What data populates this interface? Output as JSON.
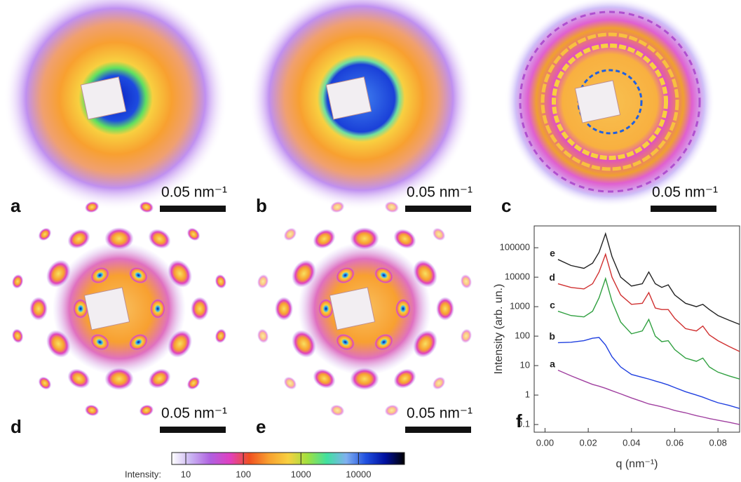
{
  "panels": [
    {
      "label": "a",
      "scale_bar": "0.05 nm⁻¹"
    },
    {
      "label": "b",
      "scale_bar": "0.05 nm⁻¹"
    },
    {
      "label": "c",
      "scale_bar": "0.05 nm⁻¹"
    },
    {
      "label": "d",
      "scale_bar": "0.05 nm⁻¹"
    },
    {
      "label": "e",
      "scale_bar": "0.05 nm⁻¹"
    }
  ],
  "colorbar": {
    "label": "Intensity:",
    "scale": "log",
    "lim": [
      5.7,
      63000
    ],
    "ticks": [
      10,
      100,
      1000,
      10000
    ],
    "colors": [
      "#ffffff",
      "#c9b3f2",
      "#b060e0",
      "#e040c0",
      "#f05020",
      "#f8a030",
      "#f8d040",
      "#a0e040",
      "#40e0a0",
      "#80b0f0",
      "#2050e0",
      "#0010a0",
      "#000000"
    ]
  },
  "chart_data": {
    "type": "line",
    "panel_label": "f",
    "xlabel": "q (nm⁻¹)",
    "ylabel": "Intensity (arb. un.)",
    "log_y": true,
    "xlim": [
      -0.005,
      0.09
    ],
    "ylim": [
      0.055,
      550000
    ],
    "xticks": [
      {
        "value": 0,
        "label": "0.00"
      },
      {
        "value": 0.02,
        "label": "0.02"
      },
      {
        "value": 0.04,
        "label": "0.04"
      },
      {
        "value": 0.06,
        "label": "0.06"
      },
      {
        "value": 0.08,
        "label": "0.08"
      }
    ],
    "yticks": [
      0.1,
      1,
      10,
      100,
      1000,
      10000,
      100000
    ],
    "x": [
      0.006,
      0.012,
      0.018,
      0.022,
      0.025,
      0.028,
      0.031,
      0.035,
      0.04,
      0.045,
      0.048,
      0.051,
      0.054,
      0.057,
      0.06,
      0.065,
      0.07,
      0.073,
      0.076,
      0.08,
      0.085,
      0.09
    ],
    "series": [
      {
        "name": "a",
        "color": "#a040a0",
        "values": [
          7,
          4.5,
          3,
          2.3,
          2,
          1.7,
          1.4,
          1.1,
          0.8,
          0.6,
          0.5,
          0.45,
          0.4,
          0.35,
          0.3,
          0.25,
          0.2,
          0.18,
          0.16,
          0.14,
          0.12,
          0.1
        ]
      },
      {
        "name": "b",
        "color": "#2040e0",
        "values": [
          60,
          62,
          70,
          85,
          90,
          50,
          20,
          9,
          5,
          4,
          3.5,
          3,
          2.6,
          2.2,
          1.8,
          1.3,
          1,
          0.85,
          0.7,
          0.55,
          0.45,
          0.35
        ]
      },
      {
        "name": "c",
        "color": "#30a040",
        "values": [
          700,
          500,
          450,
          700,
          2000,
          9000,
          1500,
          300,
          120,
          150,
          370,
          100,
          65,
          70,
          35,
          18,
          14,
          18,
          9,
          6,
          4.5,
          3.5
        ]
      },
      {
        "name": "d",
        "color": "#d03030",
        "values": [
          6000,
          4500,
          4000,
          6000,
          15000,
          60000,
          10000,
          2500,
          1200,
          1300,
          3000,
          900,
          800,
          800,
          400,
          180,
          150,
          220,
          110,
          70,
          45,
          30
        ]
      },
      {
        "name": "e",
        "color": "#222222",
        "values": [
          40000,
          25000,
          20000,
          30000,
          70000,
          300000,
          50000,
          10000,
          5000,
          6000,
          15000,
          6000,
          4500,
          5500,
          2500,
          1300,
          1000,
          1200,
          800,
          500,
          350,
          250
        ]
      }
    ]
  }
}
